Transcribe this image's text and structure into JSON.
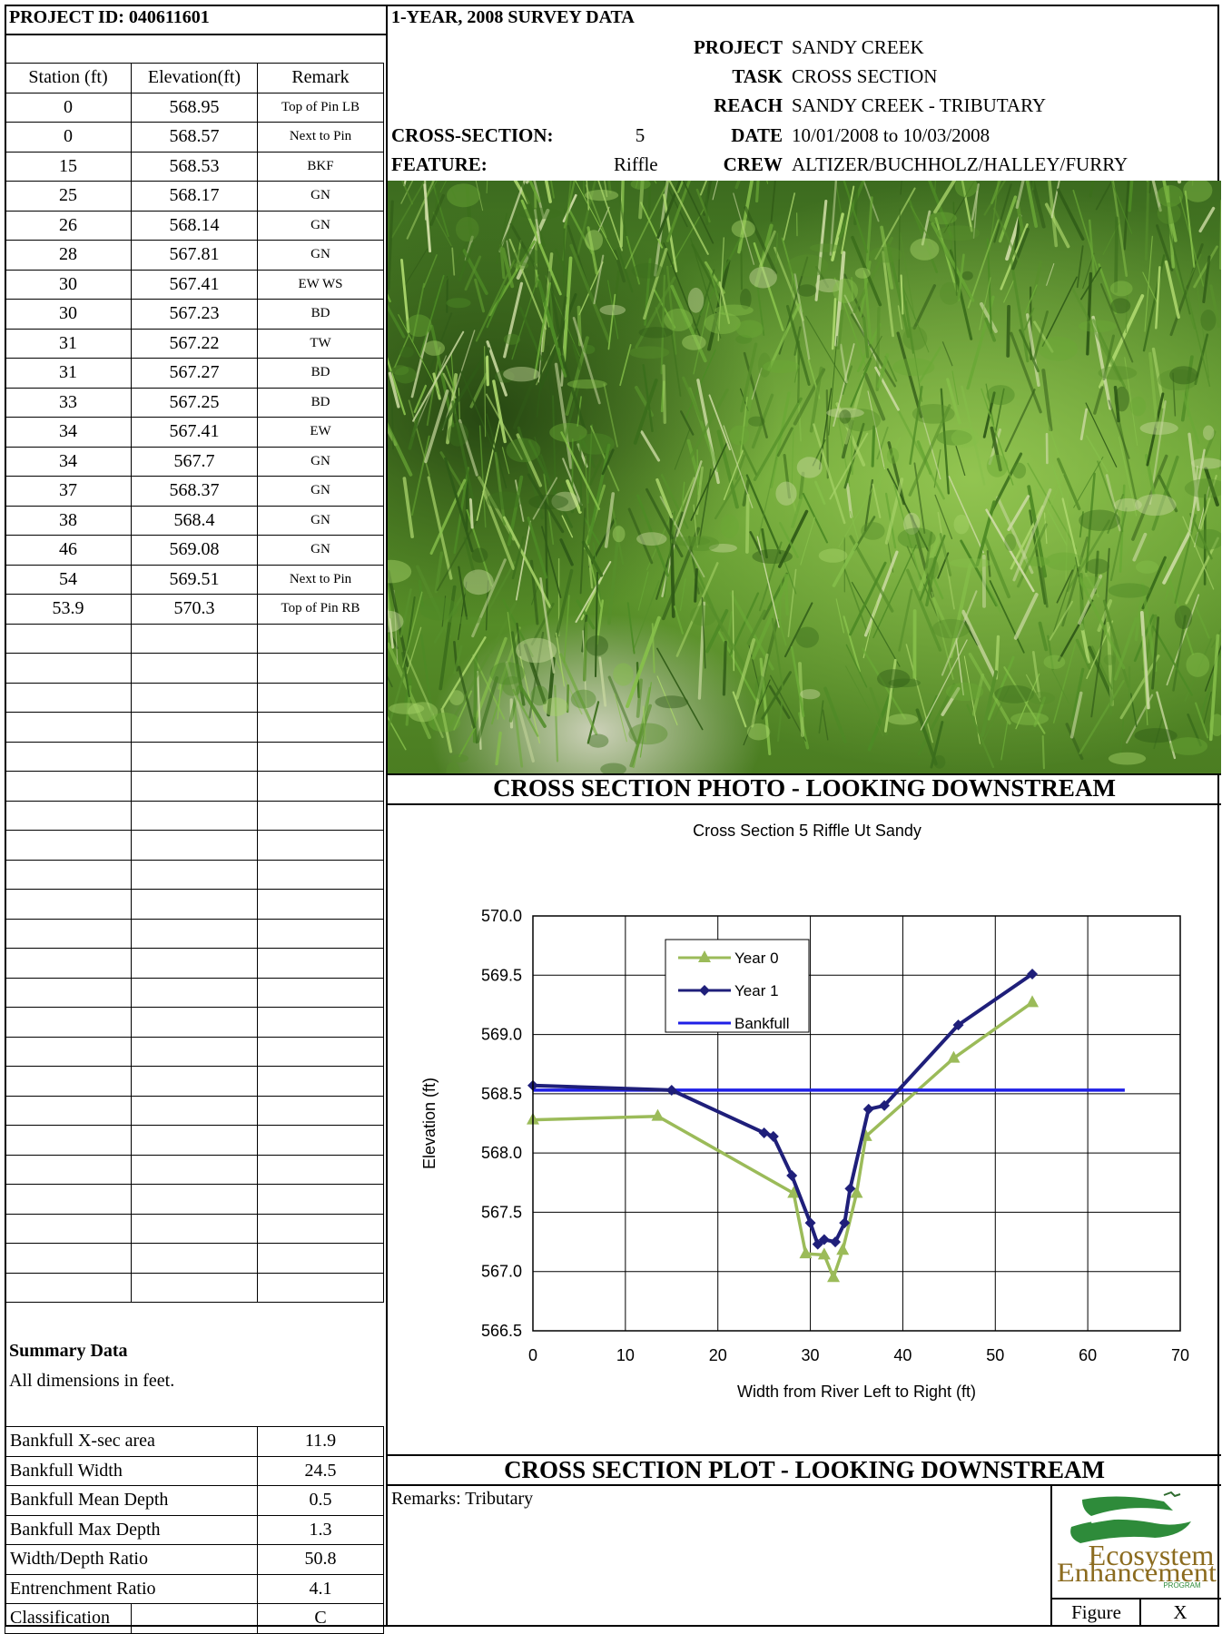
{
  "header": {
    "project_id": "PROJECT ID:  040611601",
    "survey_title": "1-YEAR, 2008 SURVEY DATA",
    "project_label": "PROJECT",
    "project_value": "SANDY CREEK",
    "task_label": "TASK",
    "task_value": "CROSS SECTION",
    "reach_label": "REACH",
    "reach_value": "SANDY CREEK - TRIBUTARY",
    "cross_section_label": "CROSS-SECTION:",
    "cross_section_value": "5",
    "date_label": "DATE",
    "date_value": "10/01/2008 to 10/03/2008",
    "feature_label": "FEATURE:",
    "feature_value": "Riffle",
    "crew_label": "CREW",
    "crew_value": "ALTIZER/BUCHHOLZ/HALLEY/FURRY"
  },
  "table": {
    "headers": [
      "Station (ft)",
      "Elevation(ft)",
      "Remark"
    ],
    "rows": [
      [
        "0",
        "568.95",
        "Top of Pin LB"
      ],
      [
        "0",
        "568.57",
        "Next to Pin"
      ],
      [
        "15",
        "568.53",
        "BKF"
      ],
      [
        "25",
        "568.17",
        "GN"
      ],
      [
        "26",
        "568.14",
        "GN"
      ],
      [
        "28",
        "567.81",
        "GN"
      ],
      [
        "30",
        "567.41",
        "EW WS"
      ],
      [
        "30",
        "567.23",
        "BD"
      ],
      [
        "31",
        "567.22",
        "TW"
      ],
      [
        "31",
        "567.27",
        "BD"
      ],
      [
        "33",
        "567.25",
        "BD"
      ],
      [
        "34",
        "567.41",
        "EW"
      ],
      [
        "34",
        "567.7",
        "GN"
      ],
      [
        "37",
        "568.37",
        "GN"
      ],
      [
        "38",
        "568.4",
        "GN"
      ],
      [
        "46",
        "569.08",
        "GN"
      ],
      [
        "54",
        "569.51",
        "Next to Pin"
      ],
      [
        "53.9",
        "570.3",
        "Top of Pin RB"
      ]
    ],
    "empty_rows": 23
  },
  "photo_caption": "CROSS SECTION PHOTO - LOOKING DOWNSTREAM",
  "plot_caption": "CROSS SECTION PLOT - LOOKING DOWNSTREAM",
  "summary": {
    "title": "Summary Data",
    "subtitle": "All dimensions in feet.",
    "rows": [
      [
        "Bankfull X-sec area",
        "11.9"
      ],
      [
        "Bankfull Width",
        "24.5"
      ],
      [
        "Bankfull Mean Depth",
        "0.5"
      ],
      [
        "Bankfull Max Depth",
        "1.3"
      ],
      [
        "Width/Depth Ratio",
        "50.8"
      ],
      [
        "Entrenchment Ratio",
        "4.1"
      ],
      [
        "Classification",
        "C"
      ]
    ]
  },
  "remarks": "Remarks:  Tributary",
  "logo": {
    "line1": "Ecosystem",
    "line2": "Enhancement",
    "line3": "PROGRAM"
  },
  "figure": {
    "label": "Figure",
    "value": "X"
  },
  "colors": {
    "year0": "#9BBB59",
    "year1": "#1F1F7A",
    "bankfull": "#1F1FE6"
  },
  "chart_data": {
    "type": "line",
    "title": "Cross Section 5 Riffle Ut Sandy",
    "xlabel": "Width from River Left to Right (ft)",
    "ylabel": "Elevation (ft)",
    "xlim": [
      0,
      70
    ],
    "ylim": [
      566.5,
      570.0
    ],
    "xticks": [
      0,
      10,
      20,
      30,
      40,
      50,
      60,
      70
    ],
    "yticks": [
      566.5,
      567.0,
      567.5,
      568.0,
      568.5,
      569.0,
      569.5,
      570.0
    ],
    "ytick_labels": [
      "566.5",
      "567.0",
      "567.5",
      "568.0",
      "568.5",
      "569.0",
      "569.5",
      "570.0"
    ],
    "grid": true,
    "legend_position": "top-center",
    "series": [
      {
        "name": "Year 0",
        "marker": "triangle",
        "x": [
          0,
          13.5,
          28.2,
          29.5,
          31.5,
          32.5,
          33.5,
          35,
          36,
          45.5,
          54
        ],
        "y": [
          568.28,
          568.31,
          567.66,
          567.15,
          567.14,
          566.95,
          567.18,
          567.66,
          568.14,
          568.8,
          569.27
        ]
      },
      {
        "name": "Year 1",
        "marker": "diamond",
        "x": [
          0,
          15,
          25,
          26,
          28,
          30,
          30.8,
          31.5,
          32.7,
          33.7,
          34.3,
          36.3,
          38,
          46,
          54
        ],
        "y": [
          568.57,
          568.53,
          568.17,
          568.14,
          567.81,
          567.41,
          567.23,
          567.27,
          567.25,
          567.41,
          567.7,
          568.37,
          568.4,
          569.08,
          569.51
        ]
      },
      {
        "name": "Bankfull",
        "marker": "none",
        "x": [
          0,
          64
        ],
        "y": [
          568.53,
          568.53
        ]
      }
    ]
  }
}
